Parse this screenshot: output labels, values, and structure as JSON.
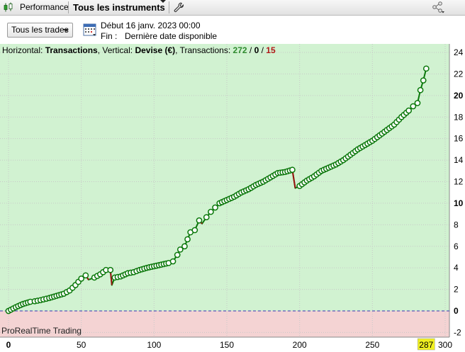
{
  "toolbar": {
    "performance_label": "Performance",
    "instruments_label": "Tous les instruments"
  },
  "controls": {
    "trades_filter": "Tous les trades",
    "start_label": "Début :",
    "start_value": "16 janv. 2023 00:00",
    "end_label": "Fin :",
    "end_value": "Dernière date disponible"
  },
  "header": {
    "horizontal_label": "Horizontal:",
    "horizontal_value": "Transactions",
    "vertical_label": ", Vertical:",
    "vertical_value": "Devise (€)",
    "transactions_label": ", Transactions:",
    "wins": "272",
    "sep1": " / ",
    "neutral": "0",
    "sep2": " / ",
    "losses": "15"
  },
  "brand": "ProRealTime Trading",
  "colors": {
    "positive_area": "#d1f2d1",
    "negative_area": "#f4d3d3",
    "curve": "#0a780a",
    "loss_segment": "#9b1010",
    "zero_line": "#3434b0",
    "last_value_badge": "#f0f020"
  },
  "chart_data": {
    "type": "line",
    "xlabel": "",
    "ylabel": "",
    "xlim": [
      0,
      300
    ],
    "ylim": [
      -2,
      24
    ],
    "x_ticks": [
      0,
      50,
      100,
      150,
      200,
      250,
      300
    ],
    "x_tick_labels": [
      "0",
      "50",
      "100",
      "150",
      "200",
      "250",
      "300"
    ],
    "y_ticks": [
      -2,
      0,
      2,
      4,
      6,
      8,
      10,
      12,
      14,
      16,
      18,
      20,
      22,
      24
    ],
    "y_tick_labels": [
      "-2",
      "0",
      "2",
      "4",
      "6",
      "8",
      "10",
      "12",
      "14",
      "16",
      "18",
      "20",
      "22",
      "24"
    ],
    "bold_y_ticks": [
      0,
      10,
      20
    ],
    "last_x_label": "287",
    "grid": true,
    "zero_line": 0,
    "series": [
      {
        "points": [
          [
            0,
            0
          ],
          [
            5,
            0.35
          ],
          [
            10,
            0.65
          ],
          [
            15,
            0.85
          ],
          [
            18,
            0.9
          ],
          [
            22,
            1.0
          ],
          [
            28,
            1.2
          ],
          [
            33,
            1.4
          ],
          [
            38,
            1.6
          ],
          [
            42,
            1.9
          ],
          [
            46,
            2.4
          ],
          [
            50,
            3.0
          ],
          [
            53,
            3.3
          ],
          [
            55,
            2.9
          ],
          [
            59,
            3.1
          ],
          [
            63,
            3.4
          ],
          [
            67,
            3.8
          ],
          [
            70,
            3.8
          ],
          [
            71,
            2.4
          ],
          [
            73,
            3.1
          ],
          [
            77,
            3.2
          ],
          [
            82,
            3.5
          ],
          [
            86,
            3.6
          ],
          [
            90,
            3.8
          ],
          [
            95,
            4.0
          ],
          [
            100,
            4.15
          ],
          [
            105,
            4.3
          ],
          [
            110,
            4.45
          ],
          [
            113,
            4.6
          ],
          [
            116,
            5.2
          ],
          [
            118,
            5.7
          ],
          [
            121,
            6.0
          ],
          [
            125,
            7.3
          ],
          [
            128,
            7.5
          ],
          [
            131,
            8.4
          ],
          [
            133,
            8.1
          ],
          [
            136,
            8.7
          ],
          [
            139,
            9.2
          ],
          [
            142,
            9.6
          ],
          [
            145,
            10.0
          ],
          [
            150,
            10.3
          ],
          [
            155,
            10.6
          ],
          [
            160,
            11.0
          ],
          [
            165,
            11.3
          ],
          [
            170,
            11.7
          ],
          [
            175,
            12.0
          ],
          [
            180,
            12.4
          ],
          [
            185,
            12.8
          ],
          [
            190,
            12.9
          ],
          [
            195,
            13.1
          ],
          [
            197,
            11.4
          ],
          [
            200,
            11.6
          ],
          [
            205,
            12.1
          ],
          [
            210,
            12.5
          ],
          [
            215,
            13.0
          ],
          [
            220,
            13.3
          ],
          [
            225,
            13.6
          ],
          [
            230,
            14.0
          ],
          [
            235,
            14.5
          ],
          [
            240,
            15.0
          ],
          [
            245,
            15.4
          ],
          [
            250,
            15.8
          ],
          [
            255,
            16.3
          ],
          [
            260,
            16.8
          ],
          [
            265,
            17.3
          ],
          [
            270,
            18.0
          ],
          [
            275,
            18.6
          ],
          [
            278,
            19.0
          ],
          [
            281,
            19.3
          ],
          [
            283,
            20.5
          ],
          [
            285,
            21.4
          ],
          [
            287,
            22.5
          ]
        ],
        "loss_segments": [
          [
            [
              53,
              3.3
            ],
            [
              55,
              2.9
            ]
          ],
          [
            [
              70,
              3.8
            ],
            [
              71,
              2.4
            ]
          ],
          [
            [
              131,
              8.4
            ],
            [
              133,
              8.1
            ]
          ],
          [
            [
              195,
              13.1
            ],
            [
              197,
              11.4
            ]
          ]
        ]
      }
    ]
  }
}
